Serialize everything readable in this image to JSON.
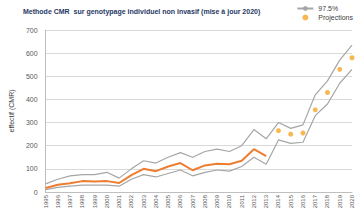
{
  "chart_data": {
    "type": "line",
    "title": "Methode CMR  sur genotypage individuel non invasif (mise à jour 2020)",
    "y_label": "effectif (CMR)",
    "categories": [
      "1995",
      "1996",
      "1997",
      "1998",
      "1999",
      "2000",
      "2001",
      "2002",
      "2003",
      "2004",
      "2005",
      "2006",
      "2007",
      "2008",
      "2009",
      "2010",
      "2011",
      "2012",
      "2013",
      "2014",
      "2015",
      "2016",
      "2017",
      "2018",
      "2019",
      "2020"
    ],
    "series": [
      {
        "type": "line",
        "color": "#A6A6A6",
        "values": [
          10,
          20,
          25,
          30,
          30,
          30,
          25,
          55,
          75,
          65,
          80,
          95,
          70,
          85,
          95,
          90,
          110,
          150,
          120,
          225,
          210,
          215,
          330,
          380,
          470,
          530
        ]
      },
      {
        "name": "97.5%",
        "type": "line",
        "color": "#A6A6A6",
        "values": [
          35,
          55,
          70,
          75,
          75,
          85,
          60,
          100,
          135,
          125,
          150,
          170,
          150,
          175,
          185,
          175,
          200,
          270,
          230,
          300,
          275,
          290,
          420,
          480,
          570,
          635
        ]
      },
      {
        "type": "line",
        "color": "#ED7D31",
        "values": [
          17,
          31,
          38,
          47,
          45,
          47,
          39,
          73,
          100,
          90,
          110,
          125,
          94,
          115,
          122,
          120,
          135,
          185,
          155,
          null,
          null,
          null,
          null,
          null,
          null,
          null
        ]
      },
      {
        "name": "Projections",
        "type": "scatter",
        "marker": "circle",
        "color": "#F5A623",
        "values": [
          null,
          null,
          null,
          null,
          null,
          null,
          null,
          null,
          null,
          null,
          null,
          null,
          null,
          null,
          null,
          null,
          null,
          null,
          null,
          265,
          250,
          255,
          355,
          430,
          530,
          580
        ]
      }
    ],
    "ylim": [
      0,
      700
    ],
    "yticks": [
      0,
      100,
      200,
      300,
      400,
      500,
      600,
      700
    ],
    "grid": true,
    "legend": "top-right"
  }
}
